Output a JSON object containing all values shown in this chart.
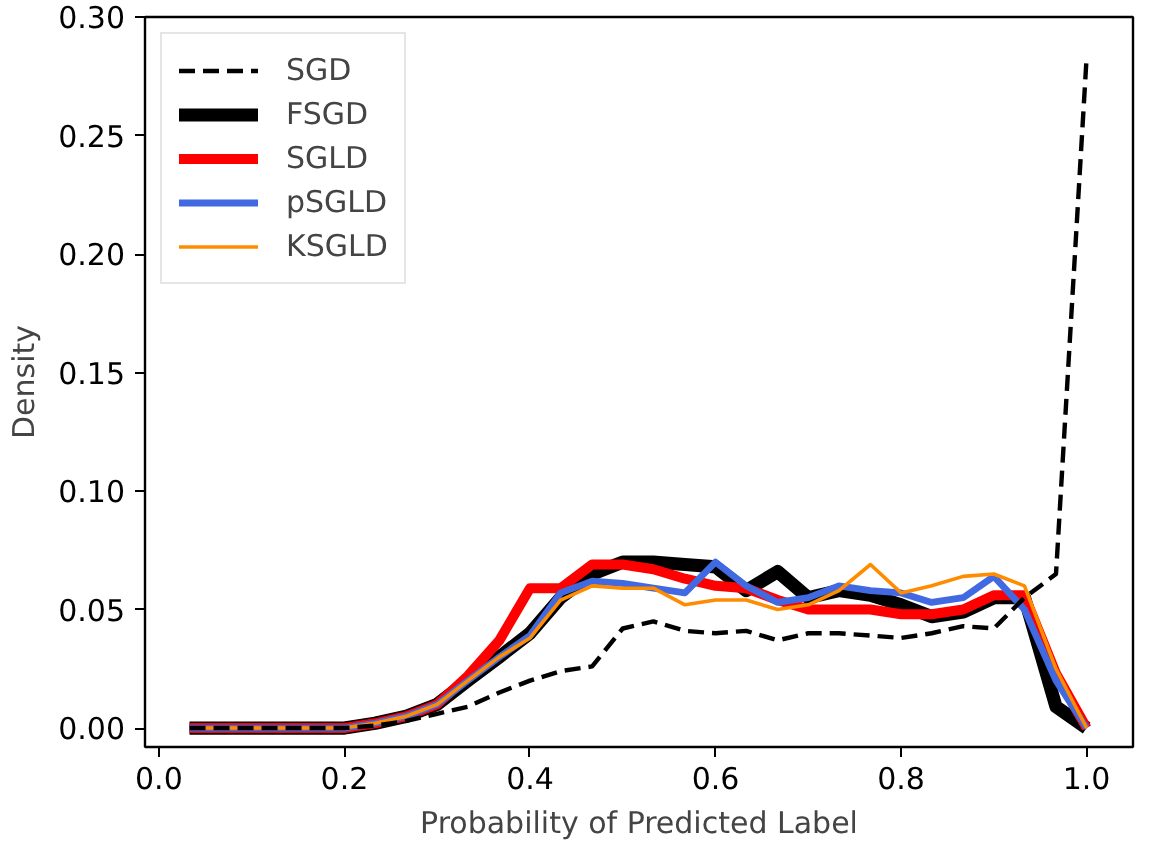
{
  "chart_data": {
    "type": "line",
    "xlabel": "Probability of Predicted Label",
    "ylabel": "Density",
    "x": [
      0.033,
      0.067,
      0.1,
      0.133,
      0.167,
      0.2,
      0.233,
      0.267,
      0.3,
      0.333,
      0.367,
      0.4,
      0.433,
      0.467,
      0.5,
      0.533,
      0.567,
      0.6,
      0.633,
      0.667,
      0.7,
      0.733,
      0.767,
      0.8,
      0.833,
      0.867,
      0.9,
      0.933,
      0.967,
      1.0
    ],
    "series": [
      {
        "name": "SGD",
        "color": "#000000",
        "line_style": "dashed",
        "values": [
          0,
          0,
          0,
          0,
          0,
          0,
          0.001,
          0.003,
          0.006,
          0.009,
          0.015,
          0.02,
          0.024,
          0.026,
          0.042,
          0.045,
          0.041,
          0.04,
          0.041,
          0.037,
          0.04,
          0.04,
          0.039,
          0.038,
          0.04,
          0.043,
          0.042,
          0.055,
          0.065,
          0.283
        ]
      },
      {
        "name": "FSGD",
        "color": "#000000",
        "line_style": "solid",
        "values": [
          0,
          0,
          0,
          0,
          0,
          0,
          0.002,
          0.005,
          0.01,
          0.02,
          0.03,
          0.04,
          0.055,
          0.065,
          0.07,
          0.07,
          0.069,
          0.068,
          0.058,
          0.066,
          0.055,
          0.058,
          0.056,
          0.052,
          0.047,
          0.049,
          0.055,
          0.055,
          0.009,
          0
        ]
      },
      {
        "name": "SGLD",
        "color": "#ff0000",
        "line_style": "solid",
        "values": [
          0,
          0,
          0,
          0,
          0,
          0,
          0.002,
          0.005,
          0.01,
          0.022,
          0.037,
          0.059,
          0.059,
          0.069,
          0.069,
          0.067,
          0.063,
          0.06,
          0.059,
          0.054,
          0.05,
          0.05,
          0.05,
          0.048,
          0.048,
          0.05,
          0.056,
          0.056,
          0.023,
          0
        ]
      },
      {
        "name": "pSGLD",
        "color": "#4169e1",
        "line_style": "solid",
        "values": [
          0,
          0,
          0,
          0,
          0,
          0,
          0.002,
          0.005,
          0.01,
          0.02,
          0.03,
          0.039,
          0.057,
          0.062,
          0.061,
          0.059,
          0.057,
          0.07,
          0.06,
          0.053,
          0.055,
          0.06,
          0.058,
          0.057,
          0.053,
          0.055,
          0.064,
          0.05,
          0.02,
          0
        ]
      },
      {
        "name": "KSGLD",
        "color": "#ff8c00",
        "line_style": "solid",
        "values": [
          0,
          0,
          0,
          0,
          0,
          0,
          0.002,
          0.005,
          0.01,
          0.02,
          0.03,
          0.038,
          0.054,
          0.06,
          0.059,
          0.059,
          0.052,
          0.054,
          0.054,
          0.05,
          0.052,
          0.058,
          0.069,
          0.057,
          0.06,
          0.064,
          0.065,
          0.06,
          0.025,
          0
        ]
      }
    ],
    "xlim": [
      -0.015,
      1.05
    ],
    "ylim": [
      -0.008,
      0.3
    ],
    "xticks": [
      {
        "value": 0,
        "label": "0.0"
      },
      {
        "value": 0.2,
        "label": "0.2"
      },
      {
        "value": 0.4,
        "label": "0.4"
      },
      {
        "value": 0.6,
        "label": "0.6"
      },
      {
        "value": 0.8,
        "label": "0.8"
      },
      {
        "value": 1.0,
        "label": "1.0"
      }
    ],
    "yticks": [
      {
        "value": 0,
        "label": "0.00"
      },
      {
        "value": 0.05,
        "label": "0.05"
      },
      {
        "value": 0.1,
        "label": "0.10"
      },
      {
        "value": 0.15,
        "label": "0.15"
      },
      {
        "value": 0.2,
        "label": "0.20"
      },
      {
        "value": 0.25,
        "label": "0.25"
      },
      {
        "value": 0.3,
        "label": "0.30"
      }
    ],
    "legend": "top left",
    "grid": false
  }
}
